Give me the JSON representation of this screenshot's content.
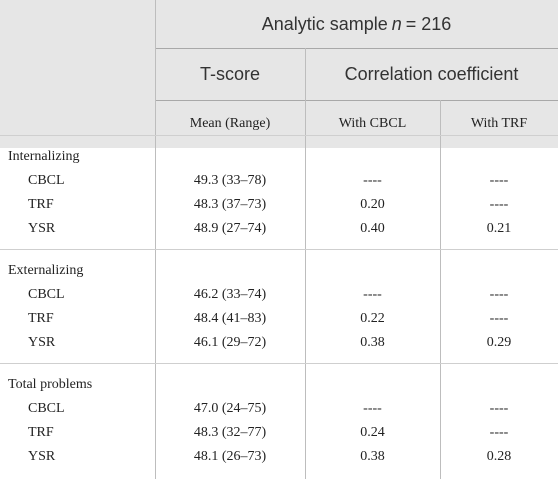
{
  "header": {
    "group_title_prefix": "Analytic sample",
    "group_title_n": "n",
    "group_title_suffix": "= 216",
    "tscore": "T-score",
    "corr": "Correlation coefficient",
    "mean_range": "Mean (Range)",
    "with_cbcl": "With CBCL",
    "with_trf": "With TRF"
  },
  "sections": [
    {
      "label": "Internalizing",
      "rows": [
        {
          "name": "CBCL",
          "mean": "49.3 (33–78)",
          "cbcl": "----",
          "trf": "----"
        },
        {
          "name": "TRF",
          "mean": "48.3 (37–73)",
          "cbcl": "0.20",
          "trf": "----"
        },
        {
          "name": "YSR",
          "mean": "48.9 (27–74)",
          "cbcl": "0.40",
          "trf": "0.21"
        }
      ]
    },
    {
      "label": "Externalizing",
      "rows": [
        {
          "name": "CBCL",
          "mean": "46.2 (33–74)",
          "cbcl": "----",
          "trf": "----"
        },
        {
          "name": "TRF",
          "mean": "48.4 (41–83)",
          "cbcl": "0.22",
          "trf": "----"
        },
        {
          "name": "YSR",
          "mean": "46.1 (29–72)",
          "cbcl": "0.38",
          "trf": "0.29"
        }
      ]
    },
    {
      "label": "Total problems",
      "rows": [
        {
          "name": "CBCL",
          "mean": "47.0 (24–75)",
          "cbcl": "----",
          "trf": "----"
        },
        {
          "name": "TRF",
          "mean": "48.3 (32–77)",
          "cbcl": "0.24",
          "trf": "----"
        },
        {
          "name": "YSR",
          "mean": "48.1 (26–73)",
          "cbcl": "0.38",
          "trf": "0.28"
        }
      ]
    }
  ]
}
